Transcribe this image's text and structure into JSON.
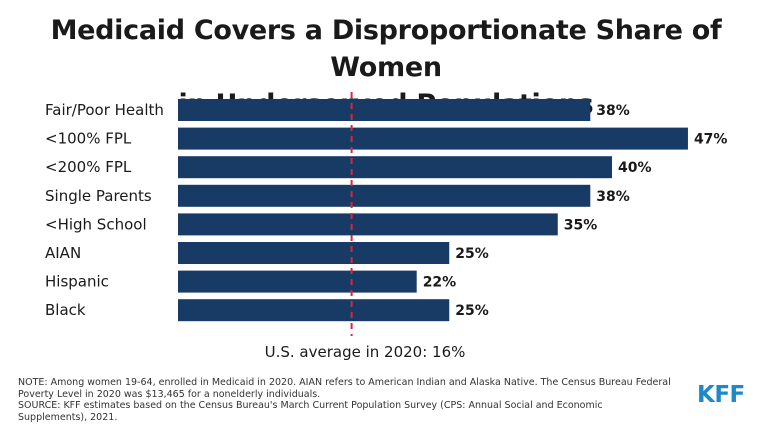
{
  "title_line1": "Medicaid Covers a Disproportionate Share of Women",
  "title_line2": "in Underserved Populations",
  "colors": {
    "bar": "#173b65",
    "reference": "#d7263d",
    "logo": "#1e88c8"
  },
  "chart_data": {
    "type": "bar",
    "orientation": "horizontal",
    "categories": [
      "Fair/Poor Health",
      "<100% FPL",
      "<200% FPL",
      "Single Parents",
      "<High School",
      "AIAN",
      "Hispanic",
      "Black"
    ],
    "values": [
      38,
      47,
      40,
      38,
      35,
      25,
      22,
      25
    ],
    "value_labels": [
      "38%",
      "47%",
      "40%",
      "38%",
      "35%",
      "25%",
      "22%",
      "25%"
    ],
    "xlim": [
      0,
      50
    ],
    "grid": false,
    "reference_line": {
      "value": 16,
      "label": "U.S. average in 2020: 16%",
      "style": "dashed"
    }
  },
  "notes": {
    "note": "NOTE: Among women 19-64, enrolled in Medicaid in 2020. AIAN refers to American Indian and Alaska Native. The Census Bureau Federal Poverty Level in 2020 was $13,465 for a nonelderly individuals.",
    "source": "SOURCE: KFF estimates based on the Census Bureau's March Current Population Survey (CPS: Annual Social and Economic Supplements), 2021."
  },
  "logo_text": "KFF"
}
